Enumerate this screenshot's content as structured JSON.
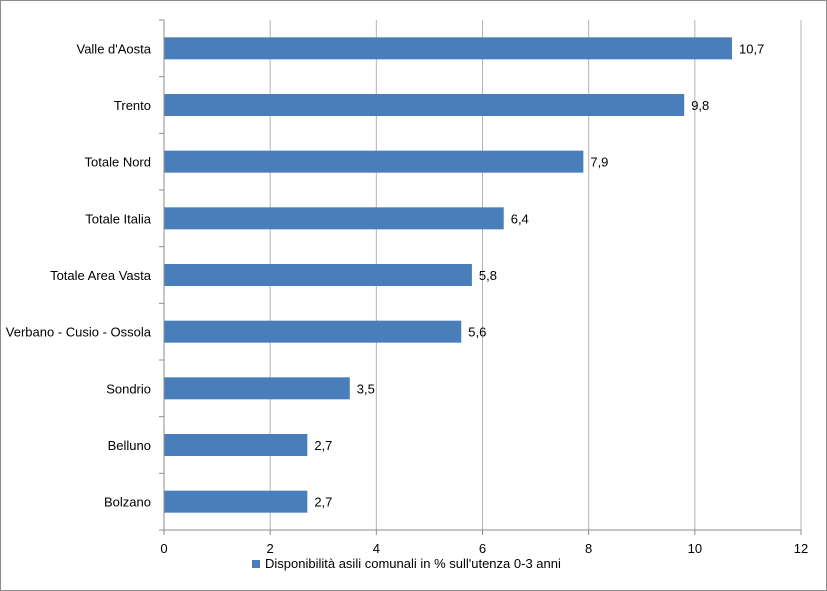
{
  "chart_data": {
    "type": "bar",
    "orientation": "horizontal",
    "categories": [
      "Valle d'Aosta",
      "Trento",
      "Totale Nord",
      "Totale Italia",
      "Totale Area Vasta",
      "Verbano - Cusio - Ossola",
      "Sondrio",
      "Belluno",
      "Bolzano"
    ],
    "series": [
      {
        "name": "Disponibilità asili comunali in % sull'utenza 0-3 anni",
        "values": [
          10.7,
          9.8,
          7.9,
          6.4,
          5.8,
          5.6,
          3.5,
          2.7,
          2.7
        ],
        "labels": [
          "10,7",
          "9,8",
          "7,9",
          "6,4",
          "5,8",
          "5,6",
          "3,5",
          "2,7",
          "2,7"
        ]
      }
    ],
    "xlim": [
      0,
      12
    ],
    "xticks": [
      0,
      2,
      4,
      6,
      8,
      10,
      12
    ],
    "xtick_labels": [
      "0",
      "2",
      "4",
      "6",
      "8",
      "10",
      "12"
    ],
    "grid": "vertical",
    "legend": "bottom",
    "bar_color": "#4a7ebb",
    "grid_color": "#b3b3b3"
  }
}
